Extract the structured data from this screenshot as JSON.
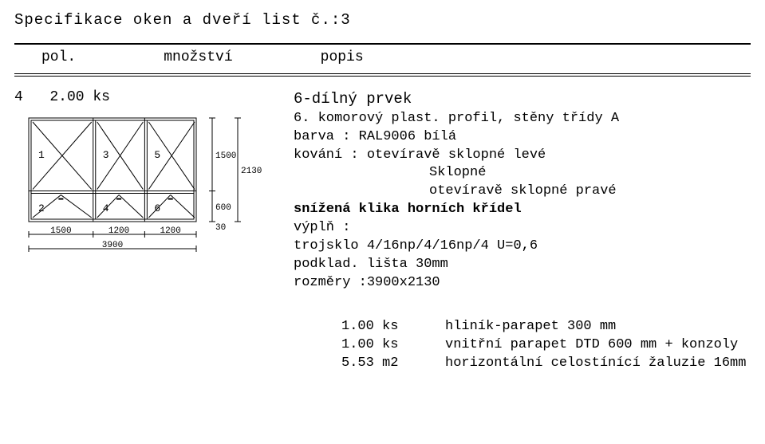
{
  "title": "Specifikace oken a dveří  list č.:3",
  "header": {
    "col1": "pol.",
    "col2": "množství",
    "col3": "popis"
  },
  "item": {
    "pol": "4",
    "qty": "2.00 ks",
    "name": "6-dílný prvek",
    "profile_line": "6. komorový plast. profil, stěny třídy A",
    "barva": "barva  : RAL9006 bílá",
    "kovani": "kování : otevíravě sklopné levé",
    "kovani2": "Sklopné",
    "kovani3": "otevíravě sklopné pravé",
    "klika": "snížená klika horních křídel",
    "vypln_label": "výplň  :",
    "vypln": "trojsklo 4/16np/4/16np/4 U=0,6",
    "podklad": "podklad. lišta 30mm",
    "rozmery": "rozměry :3900x2130"
  },
  "drawing": {
    "overall_w": 3900,
    "overall_h": 2130,
    "cols": [
      1500,
      1200,
      1200
    ],
    "top_h": 1500,
    "bot_h": 600,
    "sill": 30,
    "pane_labels": [
      "1",
      "3",
      "5",
      "2",
      "4",
      "6"
    ],
    "stroke": "#000000",
    "stroke_w": 1,
    "dim_font": 11
  },
  "accessories": [
    {
      "qty": "1.00 ks",
      "desc": "hliník-parapet 300 mm"
    },
    {
      "qty": "1.00 ks",
      "desc": "vnitřní parapet DTD 600 mm + konzoly"
    },
    {
      "qty": "5.53 m2",
      "desc": "horizontální celostínící žaluzie 16mm"
    }
  ],
  "colors": {
    "text": "#000000",
    "bg": "#ffffff"
  }
}
